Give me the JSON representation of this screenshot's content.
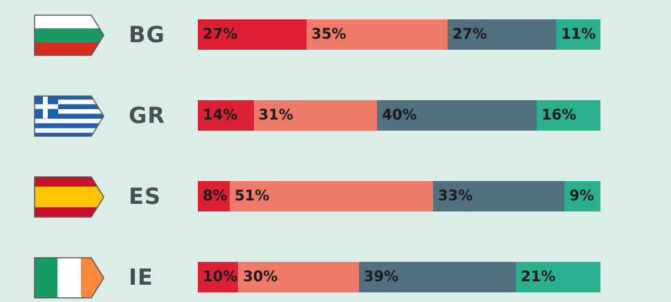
{
  "chart_data": {
    "type": "bar",
    "orientation": "horizontal-stacked-100",
    "categories": [
      "BG",
      "GR",
      "ES",
      "IE"
    ],
    "series": [
      {
        "values": [
          27,
          14,
          8,
          10
        ],
        "labels": [
          "27%",
          "14%",
          "8%",
          "10%"
        ],
        "color": "#dc1f35"
      },
      {
        "values": [
          35,
          31,
          51,
          30
        ],
        "labels": [
          "35%",
          "31%",
          "51%",
          "30%"
        ],
        "color": "#ef7a6a"
      },
      {
        "values": [
          27,
          40,
          33,
          39
        ],
        "labels": [
          "27%",
          "40%",
          "33%",
          "39%"
        ],
        "color": "#52707f"
      },
      {
        "values": [
          11,
          16,
          9,
          21
        ],
        "labels": [
          "11%",
          "16%",
          "9%",
          "21%"
        ],
        "color": "#2bb08f"
      }
    ],
    "flags": [
      "bulgaria-flag-icon",
      "greece-flag-icon",
      "spain-flag-icon",
      "ireland-flag-icon"
    ],
    "legend": "none",
    "grid": false
  },
  "colors": {
    "background": "#daeee7",
    "code_text": "#4a4f55",
    "label_text": "#1c1c1c"
  }
}
